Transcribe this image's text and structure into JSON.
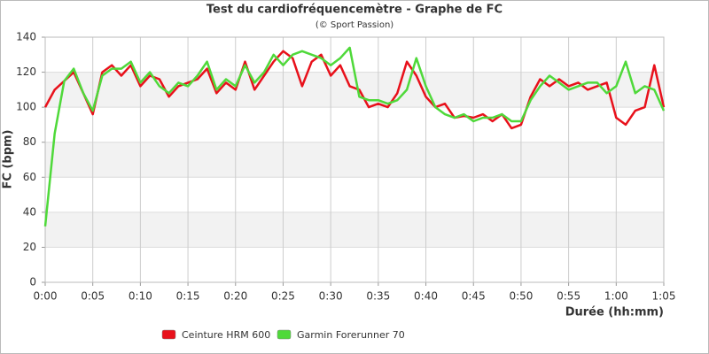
{
  "chart_data": {
    "type": "line",
    "title": "Test du cardiofréquencemètre - Graphe de FC",
    "subtitle": "(© Sport Passion)",
    "x_label": "Durée (hh:mm)",
    "y_label": "FC (bpm)",
    "x": [
      0,
      1,
      2,
      3,
      4,
      5,
      6,
      7,
      8,
      9,
      10,
      11,
      12,
      13,
      14,
      15,
      16,
      17,
      18,
      19,
      20,
      21,
      22,
      23,
      24,
      25,
      26,
      27,
      28,
      29,
      30,
      31,
      32,
      33,
      34,
      35,
      36,
      37,
      38,
      39,
      40,
      41,
      42,
      43,
      44,
      45,
      46,
      47,
      48,
      49,
      50,
      51,
      52,
      53,
      54,
      55,
      56,
      57,
      58,
      59,
      60,
      61,
      62,
      63,
      64,
      65
    ],
    "series": [
      {
        "name": "Ceinture HRM 600",
        "color": "#e8111b",
        "values": [
          100,
          110,
          115,
          120,
          108,
          96,
          120,
          124,
          118,
          124,
          112,
          118,
          116,
          106,
          112,
          114,
          116,
          122,
          108,
          114,
          110,
          126,
          110,
          118,
          126,
          132,
          128,
          112,
          126,
          130,
          118,
          124,
          112,
          110,
          100,
          102,
          100,
          108,
          126,
          118,
          106,
          100,
          102,
          94,
          95,
          94,
          96,
          92,
          96,
          88,
          90,
          106,
          116,
          112,
          116,
          112,
          114,
          110,
          112,
          114,
          94,
          90,
          98,
          100,
          124,
          100
        ]
      },
      {
        "name": "Garmin Forerunner 70",
        "color": "#4fd93a",
        "values": [
          32,
          85,
          115,
          122,
          108,
          98,
          118,
          122,
          122,
          126,
          114,
          120,
          112,
          108,
          114,
          112,
          118,
          126,
          110,
          116,
          112,
          124,
          114,
          120,
          130,
          124,
          130,
          132,
          130,
          128,
          124,
          128,
          134,
          106,
          104,
          104,
          102,
          104,
          110,
          128,
          112,
          100,
          96,
          94,
          96,
          92,
          94,
          94,
          96,
          92,
          92,
          104,
          112,
          118,
          114,
          110,
          112,
          114,
          114,
          108,
          112,
          126,
          108,
          112,
          110,
          98
        ]
      }
    ],
    "xlim": [
      0,
      65
    ],
    "xticks": [
      {
        "value": 0,
        "label": "0:00"
      },
      {
        "value": 5,
        "label": "0:05"
      },
      {
        "value": 10,
        "label": "0:10"
      },
      {
        "value": 15,
        "label": "0:15"
      },
      {
        "value": 20,
        "label": "0:20"
      },
      {
        "value": 25,
        "label": "0:25"
      },
      {
        "value": 30,
        "label": "0:30"
      },
      {
        "value": 35,
        "label": "0:35"
      },
      {
        "value": 40,
        "label": "0:40"
      },
      {
        "value": 45,
        "label": "0:45"
      },
      {
        "value": 50,
        "label": "0:50"
      },
      {
        "value": 55,
        "label": "0:55"
      },
      {
        "value": 60,
        "label": "1:00"
      },
      {
        "value": 65,
        "label": "1:05"
      }
    ],
    "ylim": [
      0,
      140
    ],
    "yticks": [
      0,
      20,
      40,
      60,
      80,
      100,
      120,
      140
    ],
    "grid": true,
    "legend": "bottom-left"
  }
}
